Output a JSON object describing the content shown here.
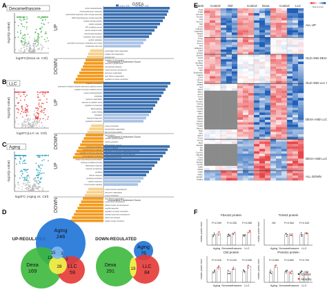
{
  "panels": {
    "a": {
      "letter": "A",
      "tag": "Dexamethasone",
      "volcano_ylabel": "-log10(p value)",
      "volcano_xlabel": "log2FC(Dexa vs. Ctrl)",
      "volcano_color": "#4caf50",
      "gsea_title": "GSEA",
      "legend": [
        "q.val ≤ 0.05",
        "q.val > 0.05"
      ],
      "up_label": "UP",
      "down_label": "DOWN",
      "xlabel": "Normalized Enrichment Score",
      "up_bars": [
        0.96,
        0.94,
        0.92,
        0.89,
        0.86,
        0.82,
        0.78,
        0.74,
        0.7,
        0.66,
        0.62,
        0.58,
        0.54
      ],
      "down_bars": [
        0.3,
        0.34,
        0.37,
        0.4,
        0.43,
        0.46,
        0.5,
        0.54,
        0.58,
        0.62,
        0.66
      ],
      "up_terms": [
        "protein deubiquitination",
        "mitochondrial gene expression",
        "mitochondrial respiratory chain complex assembly",
        "NADH dehydrogenase complex assembly",
        "oxidative phosphorylation",
        "cellular respiration",
        "ATP metabolic process",
        "electron transport chain",
        "mitochondrial translation",
        "respiratory chain complex",
        "aerobic respiration",
        "generation of precursor metabolites and energy",
        "tricarboxylic acid cycle"
      ],
      "down_terms": [
        "extracellular matrix organization",
        "collagen fibril organization",
        "angiogenesis",
        "regulation of cell migration",
        "response to growth factor",
        "cell-substrate adhesion",
        "muscle structure development",
        "sarcomere organization",
        "actin filament organization",
        "regulation of muscle contraction",
        "striated muscle cell differentiation"
      ]
    },
    "b": {
      "letter": "B",
      "tag": "LLC",
      "volcano_ylabel": "-log10(p value)",
      "volcano_xlabel": "log2FC(LLC vs. Ctrl)",
      "volcano_color": "#e53935",
      "up_label": "UP",
      "down_label": "DOWN",
      "xlabel": "Normalized Enrichment Score",
      "up_bars": [
        0.97,
        0.93,
        0.9,
        0.87,
        0.84,
        0.81,
        0.78,
        0.75,
        0.72,
        0.69,
        0.66,
        0.62,
        0.58
      ],
      "down_bars": [
        0.28,
        0.32,
        0.36,
        0.4,
        0.44,
        0.48,
        0.52,
        0.56,
        0.6,
        0.64,
        0.68
      ],
      "up_terms": [
        "response to interferon",
        "proteasome-mediated ubiquitin-dependent catabolic process",
        "regulation of protein catabolic process",
        "protein polyubiquitination",
        "autophagy",
        "lysosome organization",
        "response to oxidative stress",
        "regulation of proteolysis",
        "ERAD pathway",
        "protein folding",
        "translation",
        "ribosome biogenesis",
        "cytoplasmic translation"
      ],
      "down_terms": [
        "muscle contraction",
        "mitochondrion organization",
        "fatty acid beta-oxidation",
        "lipid oxidation",
        "oxidative phosphorylation",
        "cellular respiration",
        "ATP metabolic process",
        "aerobic respiration",
        "generation of precursor metabolites and energy",
        "NADH dehydrogenase complex assembly",
        "tricarboxylic acid cycle"
      ]
    },
    "c": {
      "letter": "C",
      "tag": "Aging",
      "volcano_ylabel": "-log10(p value)",
      "volcano_xlabel": "log2FC (Aging vs. Ctrl)",
      "volcano_color": "#26a0b8",
      "up_label": "UP",
      "down_label": "DOWN",
      "xlabel": "Normalized Enrichment Score",
      "up_bars": [
        0.96,
        0.93,
        0.9,
        0.86,
        0.82,
        0.78,
        0.74,
        0.7,
        0.66,
        0.62,
        0.58,
        0.54,
        0.5
      ],
      "down_bars": [
        0.34,
        0.38,
        0.42,
        0.46,
        0.5,
        0.54,
        0.58,
        0.62,
        0.66,
        0.7,
        0.74
      ],
      "up_terms": [
        "complement activation",
        "humoral immune response",
        "regulation of immune response",
        "immunoglobulin production",
        "antigen processing and presentation",
        "leukocyte mediated immunity",
        "inflammatory response",
        "response to bacterium",
        "cell killing",
        "defense response",
        "lymphocyte activation",
        "cytokine production",
        "B cell receptor signaling"
      ],
      "down_terms": [
        "muscle structure development",
        "sarcomere organization",
        "muscle contraction",
        "actin filament organization",
        "muscle tissue development",
        "striated muscle cell development",
        "myofibril assembly",
        "regulation of muscle contraction",
        "skeletal muscle fiber development",
        "calcium ion transport",
        "cardiac muscle contraction"
      ]
    },
    "d": {
      "letter": "D",
      "up_title": "UP-REGULATED",
      "down_title": "DOWN-REGULATED",
      "up_sets": [
        {
          "name": "Aging",
          "count": "246",
          "color": "#1e73d8"
        },
        {
          "name": "Dexa",
          "count": "169",
          "color": "#3cb83c"
        },
        {
          "name": "LLC",
          "count": "59",
          "color": "#e53935"
        }
      ],
      "up_intersections": [
        "15",
        "3",
        "28",
        "2",
        "13"
      ],
      "down_sets": [
        {
          "name": "Aging",
          "count": "76",
          "color": "#1e73d8"
        },
        {
          "name": "Dexa",
          "count": "291",
          "color": "#3cb83c"
        },
        {
          "name": "LLC",
          "count": "84",
          "color": "#e53935"
        }
      ],
      "down_intersections": [
        "19",
        "0",
        "6"
      ]
    },
    "e": {
      "letter": "E",
      "columns": [
        "Protein",
        "Control",
        "Old",
        "Control",
        "Dexa",
        "Control",
        "LLC"
      ],
      "colorkey_label": "Row Z-score",
      "colorkey_ticks": [
        "-2",
        "0",
        "2"
      ],
      "proteins": [
        "Pygl",
        "Pdk4",
        "Fbxo32",
        "Trim63",
        "Ctsl",
        "Hmox1",
        "Mt2",
        "Lcn2",
        "Cdkn1a",
        "Gadd45a",
        "Fkbp5",
        "Klf15",
        "Txnip",
        "Sesn1",
        "Foxo1",
        "Atf4",
        "Eif4ebp1",
        "Ddit4",
        "Cebpd",
        "Zbtb16",
        "Sod3",
        "Gpx3",
        "Slc38a2",
        "Nmrk2",
        "Ucp3",
        "Mt1",
        "Serpina3n",
        "Lgals3",
        "Cd74",
        "H2-Aa",
        "Ppara",
        "Pfkfb3",
        "Irs2",
        "Myh4",
        "Myh1",
        "Actc1",
        "Tnnt2",
        "Myl4",
        "Chrna1",
        "Chrng",
        "Ankrd1",
        "Cryab",
        "Hspb1",
        "Mstn",
        "Igfbp5",
        "Mylk4",
        "Casq1",
        "Atp2a1",
        "Pvalb",
        "Myoz1",
        "Tcap",
        "Ckm",
        "Myh7",
        "Tnni1",
        "Tnnc1",
        "Myl3",
        "Atp2a2",
        "Sln",
        "Mb",
        "Cox7a1",
        "Ndufa4",
        "Cycs",
        "Uqcrq",
        "Atp5g1",
        "Cox6c",
        "Sdhb",
        "Idh3a",
        "Ogdh",
        "Mdh2",
        "Acadm",
        "Hadha"
      ],
      "groups": [
        "ALL UP",
        "OLD AND DEXA UP",
        "OLD AND LLC UP",
        "DEXA AND LLC UP",
        "DEXA AND LLC DOWN",
        "ALL DOWN"
      ]
    },
    "f": {
      "letter": "F",
      "legend": [
        "Control",
        "Atrophy"
      ],
      "charts": [
        {
          "title": "Fbxo32 protein",
          "ylabel": "relative protein level",
          "groups": [
            "Aging",
            "Dexamethasone",
            "LLC"
          ],
          "pvals": [
            "P=0.390",
            "P=0.335",
            "P=0.285"
          ],
          "ctrl": [
            1.0,
            1.0,
            1.0
          ],
          "atr": [
            1.1,
            1.15,
            1.25
          ],
          "ylim": [
            0,
            2.5
          ]
        },
        {
          "title": "Trim63 protein",
          "ylabel": "relative protein level",
          "groups": [
            "Aging",
            "Dexamethasone",
            "LLC"
          ],
          "pvals": [
            "ND",
            "P=0.364",
            "P=0.343"
          ],
          "ctrl": [
            0,
            1.0,
            1.0
          ],
          "atr": [
            0,
            1.1,
            1.18
          ],
          "ylim": [
            0,
            2.5
          ]
        },
        {
          "title": "Ctsl protein",
          "ylabel": "relative protein level",
          "groups": [
            "Aging",
            "Dexamethasone",
            "LLC"
          ],
          "pvals": [
            "P=0.016",
            "P=0.034",
            "P=0.006"
          ],
          "ctrl": [
            1.0,
            1.0,
            1.0
          ],
          "atr": [
            1.4,
            1.3,
            1.55
          ],
          "ylim": [
            0,
            2.5
          ]
        },
        {
          "title": "Psmd11 protein",
          "ylabel": "relative protein level",
          "groups": [
            "Aging",
            "Dexamethasone",
            "LLC"
          ],
          "pvals": [
            "P=0.069",
            "P=0.852",
            "P=0.704"
          ],
          "ctrl": [
            1.0,
            1.0,
            1.0
          ],
          "atr": [
            1.45,
            1.02,
            1.05
          ],
          "ylim": [
            0,
            2.5
          ]
        }
      ]
    }
  },
  "colors": {
    "up_sig": "#3a6fb0",
    "up_ns": "#a9c2e3",
    "down_sig": "#f39a1c",
    "down_ns": "#f8d08a",
    "heat_high": "#1f5fb8",
    "heat_low": "#e8464a",
    "missing": "#8a8a8a",
    "ctrl_dot": "#444444",
    "atr_dot": "#e53935"
  }
}
